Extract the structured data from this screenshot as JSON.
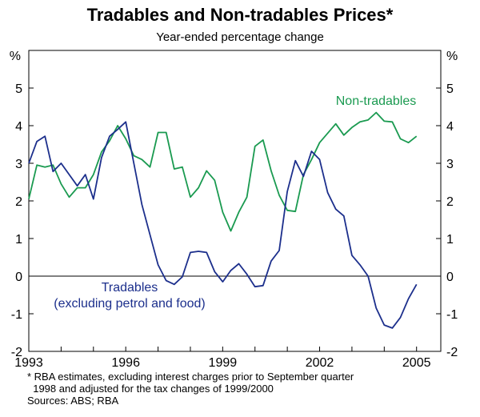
{
  "chart_data": {
    "type": "line",
    "title": "Tradables and Non-tradables Prices*",
    "subtitle": "Year-ended percentage change",
    "ylabel_left": "%",
    "ylabel_right": "%",
    "ylim": [
      -2,
      6
    ],
    "yticks": [
      -2,
      -1,
      0,
      1,
      2,
      3,
      4,
      5
    ],
    "xlim": [
      1993,
      2005.75
    ],
    "xticks": [
      1993,
      1996,
      1999,
      2002,
      2005
    ],
    "xtick_labels": [
      "1993",
      "1996",
      "1999",
      "2002",
      "2005"
    ],
    "series": [
      {
        "name": "Non-tradables",
        "color": "#1a9a50",
        "label_lines": [
          "Non-tradables"
        ],
        "x": [
          1993.0,
          1993.25,
          1993.5,
          1993.75,
          1994.0,
          1994.25,
          1994.5,
          1994.75,
          1995.0,
          1995.25,
          1995.5,
          1995.75,
          1996.0,
          1996.25,
          1996.5,
          1996.75,
          1997.0,
          1997.25,
          1997.5,
          1997.75,
          1998.0,
          1998.25,
          1998.5,
          1998.75,
          1999.0,
          1999.25,
          1999.5,
          1999.75,
          2000.0,
          2000.25,
          2000.5,
          2000.75,
          2001.0,
          2001.25,
          2001.5,
          2001.75,
          2002.0,
          2002.25,
          2002.5,
          2002.75,
          2003.0,
          2003.25,
          2003.5,
          2003.75,
          2004.0,
          2004.25,
          2004.5,
          2004.75,
          2005.0
        ],
        "values": [
          2.05,
          2.95,
          2.9,
          2.95,
          2.45,
          2.1,
          2.35,
          2.35,
          2.7,
          3.3,
          3.6,
          4.0,
          3.65,
          3.2,
          3.1,
          2.9,
          3.82,
          3.82,
          2.85,
          2.9,
          2.1,
          2.35,
          2.8,
          2.55,
          1.7,
          1.2,
          1.7,
          2.1,
          3.45,
          3.62,
          2.8,
          2.15,
          1.75,
          1.72,
          2.7,
          3.1,
          3.55,
          3.8,
          4.05,
          3.75,
          3.95,
          4.1,
          4.15,
          4.35,
          4.12,
          4.1,
          3.65,
          3.55,
          3.72
        ]
      },
      {
        "name": "Tradables (excluding petrol and food)",
        "color": "#1c2f8c",
        "label_lines": [
          "Tradables",
          "(excluding petrol and food)"
        ],
        "x": [
          1993.0,
          1993.25,
          1993.5,
          1993.75,
          1994.0,
          1994.25,
          1994.5,
          1994.75,
          1995.0,
          1995.25,
          1995.5,
          1995.75,
          1996.0,
          1996.25,
          1996.5,
          1996.75,
          1997.0,
          1997.25,
          1997.5,
          1997.75,
          1998.0,
          1998.25,
          1998.5,
          1998.75,
          1999.0,
          1999.25,
          1999.5,
          1999.75,
          2000.0,
          2000.25,
          2000.5,
          2000.75,
          2001.0,
          2001.25,
          2001.5,
          2001.75,
          2002.0,
          2002.25,
          2002.5,
          2002.75,
          2003.0,
          2003.25,
          2003.5,
          2003.75,
          2004.0,
          2004.25,
          2004.5,
          2004.75,
          2005.0
        ],
        "values": [
          3.0,
          3.58,
          3.72,
          2.78,
          3.0,
          2.7,
          2.4,
          2.7,
          2.05,
          3.15,
          3.72,
          3.9,
          4.1,
          3.0,
          1.9,
          1.1,
          0.3,
          -0.12,
          -0.22,
          -0.02,
          0.63,
          0.66,
          0.63,
          0.12,
          -0.15,
          0.15,
          0.33,
          0.05,
          -0.28,
          -0.25,
          0.4,
          0.68,
          2.25,
          3.07,
          2.65,
          3.32,
          3.1,
          2.22,
          1.78,
          1.6,
          0.55,
          0.3,
          0.0,
          -0.85,
          -1.3,
          -1.38,
          -1.1,
          -0.6,
          -0.22
        ]
      }
    ]
  },
  "footnotes": [
    "* RBA estimates, excluding interest charges prior to September quarter",
    "  1998 and adjusted for the tax changes of 1999/2000",
    "Sources: ABS; RBA"
  ]
}
